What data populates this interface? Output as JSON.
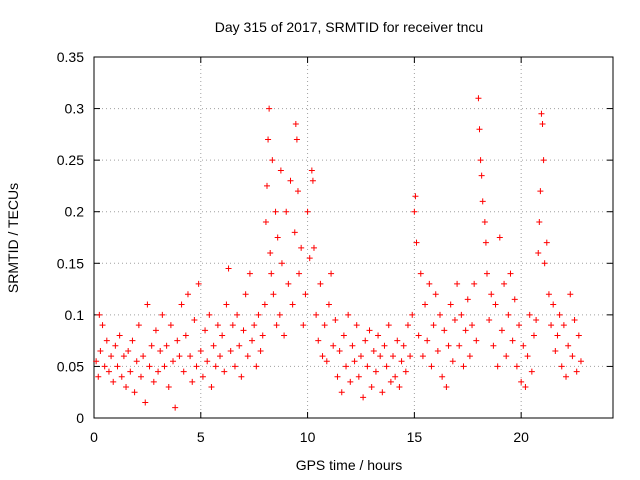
{
  "chart_data": {
    "type": "scatter",
    "title": "Day 315 of 2017, SRMTID for receiver tncu",
    "xlabel": "GPS time / hours",
    "ylabel": "SRMTID / TECUs",
    "xlim": [
      0,
      24.3
    ],
    "ylim": [
      0,
      0.35
    ],
    "xticks": [
      0,
      5,
      10,
      15,
      20
    ],
    "xtick_labels": [
      "0",
      "5",
      "10",
      "15",
      "20"
    ],
    "yticks": [
      0,
      0.05,
      0.1,
      0.15,
      0.2,
      0.25,
      0.3,
      0.35
    ],
    "ytick_labels": [
      "0",
      "0.05",
      "0.1",
      "0.15",
      "0.2",
      "0.25",
      "0.3",
      "0.35"
    ],
    "grid": true,
    "marker": "plus",
    "series": [
      {
        "name": "SRMTID",
        "color": "#ff0000",
        "points": [
          [
            0.1,
            0.055
          ],
          [
            0.2,
            0.04
          ],
          [
            0.25,
            0.1
          ],
          [
            0.3,
            0.065
          ],
          [
            0.4,
            0.09
          ],
          [
            0.5,
            0.05
          ],
          [
            0.6,
            0.075
          ],
          [
            0.7,
            0.045
          ],
          [
            0.8,
            0.06
          ],
          [
            0.9,
            0.035
          ],
          [
            1.0,
            0.07
          ],
          [
            1.1,
            0.05
          ],
          [
            1.2,
            0.08
          ],
          [
            1.3,
            0.04
          ],
          [
            1.4,
            0.06
          ],
          [
            1.5,
            0.03
          ],
          [
            1.6,
            0.065
          ],
          [
            1.7,
            0.045
          ],
          [
            1.8,
            0.075
          ],
          [
            1.9,
            0.025
          ],
          [
            2.0,
            0.055
          ],
          [
            2.1,
            0.09
          ],
          [
            2.2,
            0.04
          ],
          [
            2.3,
            0.06
          ],
          [
            2.4,
            0.015
          ],
          [
            2.5,
            0.11
          ],
          [
            2.6,
            0.05
          ],
          [
            2.7,
            0.07
          ],
          [
            2.8,
            0.035
          ],
          [
            2.9,
            0.085
          ],
          [
            3.0,
            0.045
          ],
          [
            3.1,
            0.065
          ],
          [
            3.2,
            0.1
          ],
          [
            3.3,
            0.05
          ],
          [
            3.4,
            0.07
          ],
          [
            3.5,
            0.03
          ],
          [
            3.6,
            0.09
          ],
          [
            3.7,
            0.055
          ],
          [
            3.8,
            0.01
          ],
          [
            3.9,
            0.075
          ],
          [
            4.0,
            0.06
          ],
          [
            4.1,
            0.11
          ],
          [
            4.2,
            0.045
          ],
          [
            4.3,
            0.08
          ],
          [
            4.4,
            0.12
          ],
          [
            4.5,
            0.06
          ],
          [
            4.6,
            0.035
          ],
          [
            4.7,
            0.095
          ],
          [
            4.8,
            0.05
          ],
          [
            4.9,
            0.13
          ],
          [
            5.0,
            0.065
          ],
          [
            5.1,
            0.04
          ],
          [
            5.2,
            0.085
          ],
          [
            5.3,
            0.055
          ],
          [
            5.4,
            0.1
          ],
          [
            5.5,
            0.03
          ],
          [
            5.6,
            0.07
          ],
          [
            5.7,
            0.05
          ],
          [
            5.8,
            0.09
          ],
          [
            5.9,
            0.06
          ],
          [
            6.0,
            0.08
          ],
          [
            6.1,
            0.045
          ],
          [
            6.2,
            0.11
          ],
          [
            6.3,
            0.145
          ],
          [
            6.4,
            0.065
          ],
          [
            6.5,
            0.09
          ],
          [
            6.6,
            0.05
          ],
          [
            6.7,
            0.1
          ],
          [
            6.8,
            0.07
          ],
          [
            6.9,
            0.04
          ],
          [
            7.0,
            0.085
          ],
          [
            7.1,
            0.12
          ],
          [
            7.2,
            0.06
          ],
          [
            7.3,
            0.14
          ],
          [
            7.4,
            0.075
          ],
          [
            7.5,
            0.09
          ],
          [
            7.6,
            0.05
          ],
          [
            7.7,
            0.1
          ],
          [
            7.8,
            0.065
          ],
          [
            7.9,
            0.08
          ],
          [
            8.0,
            0.11
          ],
          [
            8.05,
            0.19
          ],
          [
            8.1,
            0.225
          ],
          [
            8.15,
            0.27
          ],
          [
            8.2,
            0.3
          ],
          [
            8.25,
            0.16
          ],
          [
            8.3,
            0.14
          ],
          [
            8.35,
            0.25
          ],
          [
            8.4,
            0.12
          ],
          [
            8.5,
            0.2
          ],
          [
            8.55,
            0.09
          ],
          [
            8.6,
            0.175
          ],
          [
            8.7,
            0.1
          ],
          [
            8.75,
            0.24
          ],
          [
            8.8,
            0.15
          ],
          [
            8.9,
            0.08
          ],
          [
            9.0,
            0.2
          ],
          [
            9.1,
            0.13
          ],
          [
            9.2,
            0.23
          ],
          [
            9.3,
            0.11
          ],
          [
            9.4,
            0.18
          ],
          [
            9.45,
            0.285
          ],
          [
            9.5,
            0.27
          ],
          [
            9.55,
            0.22
          ],
          [
            9.6,
            0.14
          ],
          [
            9.7,
            0.165
          ],
          [
            9.8,
            0.09
          ],
          [
            9.9,
            0.12
          ],
          [
            10.0,
            0.2
          ],
          [
            10.1,
            0.155
          ],
          [
            10.2,
            0.24
          ],
          [
            10.25,
            0.23
          ],
          [
            10.3,
            0.165
          ],
          [
            10.4,
            0.1
          ],
          [
            10.5,
            0.075
          ],
          [
            10.6,
            0.13
          ],
          [
            10.7,
            0.06
          ],
          [
            10.8,
            0.09
          ],
          [
            10.9,
            0.055
          ],
          [
            11.0,
            0.11
          ],
          [
            11.1,
            0.14
          ],
          [
            11.2,
            0.07
          ],
          [
            11.3,
            0.095
          ],
          [
            11.4,
            0.04
          ],
          [
            11.5,
            0.065
          ],
          [
            11.6,
            0.025
          ],
          [
            11.7,
            0.08
          ],
          [
            11.8,
            0.05
          ],
          [
            11.9,
            0.1
          ],
          [
            12.0,
            0.035
          ],
          [
            12.1,
            0.07
          ],
          [
            12.2,
            0.055
          ],
          [
            12.3,
            0.09
          ],
          [
            12.4,
            0.04
          ],
          [
            12.5,
            0.06
          ],
          [
            12.6,
            0.02
          ],
          [
            12.7,
            0.075
          ],
          [
            12.8,
            0.05
          ],
          [
            12.9,
            0.085
          ],
          [
            13.0,
            0.03
          ],
          [
            13.1,
            0.065
          ],
          [
            13.2,
            0.045
          ],
          [
            13.3,
            0.08
          ],
          [
            13.4,
            0.06
          ],
          [
            13.5,
            0.025
          ],
          [
            13.6,
            0.07
          ],
          [
            13.7,
            0.05
          ],
          [
            13.8,
            0.09
          ],
          [
            13.9,
            0.035
          ],
          [
            14.0,
            0.06
          ],
          [
            14.1,
            0.04
          ],
          [
            14.2,
            0.075
          ],
          [
            14.3,
            0.03
          ],
          [
            14.4,
            0.055
          ],
          [
            14.5,
            0.07
          ],
          [
            14.6,
            0.045
          ],
          [
            14.7,
            0.09
          ],
          [
            14.8,
            0.06
          ],
          [
            14.9,
            0.1
          ],
          [
            15.0,
            0.2
          ],
          [
            15.05,
            0.215
          ],
          [
            15.1,
            0.17
          ],
          [
            15.2,
            0.08
          ],
          [
            15.3,
            0.14
          ],
          [
            15.4,
            0.06
          ],
          [
            15.5,
            0.11
          ],
          [
            15.6,
            0.075
          ],
          [
            15.7,
            0.13
          ],
          [
            15.8,
            0.05
          ],
          [
            15.9,
            0.09
          ],
          [
            16.0,
            0.12
          ],
          [
            16.1,
            0.065
          ],
          [
            16.2,
            0.1
          ],
          [
            16.3,
            0.04
          ],
          [
            16.4,
            0.085
          ],
          [
            16.5,
            0.03
          ],
          [
            16.6,
            0.07
          ],
          [
            16.7,
            0.11
          ],
          [
            16.8,
            0.055
          ],
          [
            16.9,
            0.095
          ],
          [
            17.0,
            0.13
          ],
          [
            17.1,
            0.07
          ],
          [
            17.2,
            0.1
          ],
          [
            17.3,
            0.05
          ],
          [
            17.4,
            0.085
          ],
          [
            17.5,
            0.115
          ],
          [
            17.6,
            0.06
          ],
          [
            17.7,
            0.09
          ],
          [
            17.8,
            0.13
          ],
          [
            17.9,
            0.075
          ],
          [
            18.0,
            0.31
          ],
          [
            18.05,
            0.28
          ],
          [
            18.1,
            0.25
          ],
          [
            18.15,
            0.235
          ],
          [
            18.2,
            0.21
          ],
          [
            18.3,
            0.19
          ],
          [
            18.35,
            0.17
          ],
          [
            18.4,
            0.14
          ],
          [
            18.5,
            0.095
          ],
          [
            18.6,
            0.12
          ],
          [
            18.7,
            0.07
          ],
          [
            18.8,
            0.11
          ],
          [
            18.9,
            0.05
          ],
          [
            19.0,
            0.175
          ],
          [
            19.1,
            0.085
          ],
          [
            19.2,
            0.13
          ],
          [
            19.3,
            0.06
          ],
          [
            19.4,
            0.1
          ],
          [
            19.5,
            0.14
          ],
          [
            19.6,
            0.075
          ],
          [
            19.7,
            0.115
          ],
          [
            19.8,
            0.05
          ],
          [
            19.9,
            0.09
          ],
          [
            20.0,
            0.035
          ],
          [
            20.1,
            0.07
          ],
          [
            20.2,
            0.03
          ],
          [
            20.3,
            0.06
          ],
          [
            20.4,
            0.1
          ],
          [
            20.5,
            0.045
          ],
          [
            20.6,
            0.08
          ],
          [
            20.7,
            0.095
          ],
          [
            20.8,
            0.16
          ],
          [
            20.85,
            0.19
          ],
          [
            20.9,
            0.22
          ],
          [
            20.95,
            0.295
          ],
          [
            21.0,
            0.285
          ],
          [
            21.05,
            0.25
          ],
          [
            21.1,
            0.15
          ],
          [
            21.2,
            0.17
          ],
          [
            21.3,
            0.12
          ],
          [
            21.4,
            0.09
          ],
          [
            21.5,
            0.11
          ],
          [
            21.6,
            0.065
          ],
          [
            21.7,
            0.08
          ],
          [
            21.8,
            0.1
          ],
          [
            21.9,
            0.05
          ],
          [
            22.0,
            0.09
          ],
          [
            22.1,
            0.04
          ],
          [
            22.2,
            0.07
          ],
          [
            22.3,
            0.12
          ],
          [
            22.4,
            0.06
          ],
          [
            22.5,
            0.095
          ],
          [
            22.6,
            0.045
          ],
          [
            22.7,
            0.08
          ],
          [
            22.8,
            0.055
          ]
        ]
      }
    ]
  }
}
